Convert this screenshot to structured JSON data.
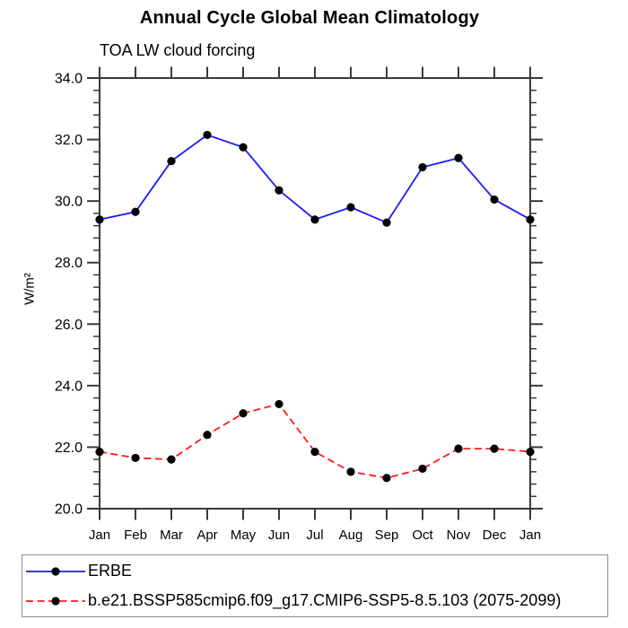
{
  "title": "Annual Cycle Global Mean Climatology",
  "subtitle": "TOA LW cloud forcing",
  "chart_data": {
    "type": "line",
    "categories": [
      "Jan",
      "Feb",
      "Mar",
      "Apr",
      "May",
      "Jun",
      "Jul",
      "Aug",
      "Sep",
      "Oct",
      "Nov",
      "Dec",
      "Jan"
    ],
    "series": [
      {
        "name": "ERBE",
        "color": "#1a1aff",
        "line_style": "solid",
        "values": [
          29.4,
          29.65,
          31.3,
          32.15,
          31.75,
          30.35,
          29.4,
          29.8,
          29.3,
          31.1,
          31.4,
          30.05,
          29.4
        ]
      },
      {
        "name": "b.e21.BSSP585cmip6.f09_g17.CMIP6-SSP5-8.5.103 (2075-2099)",
        "color": "#ff1a1a",
        "line_style": "dashed",
        "values": [
          21.85,
          21.65,
          21.6,
          22.4,
          23.1,
          23.4,
          21.85,
          21.2,
          21.0,
          21.3,
          21.95,
          21.95,
          21.85
        ]
      }
    ],
    "xlabel": "",
    "ylabel": "W/m²",
    "ylim": [
      20.0,
      34.0
    ],
    "ytick_major": 2.0,
    "ytick_minor": 0.4,
    "ytick_label_format": "one-decimal",
    "marker": "filled-circle",
    "marker_color": "#000000",
    "axis_color": "#3a3a3a",
    "grid": false,
    "legend_position": "bottom-left-box"
  }
}
